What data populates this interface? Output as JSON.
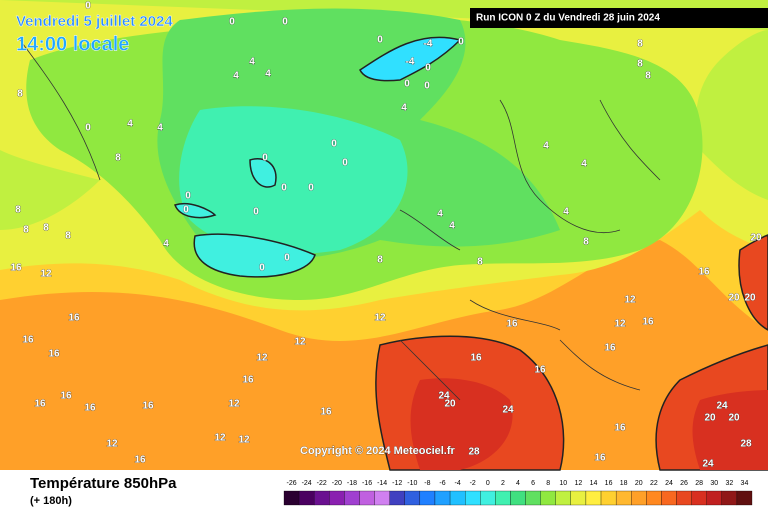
{
  "header": {
    "date": "Vendredi 5 juillet 2024",
    "time": "14:00 locale",
    "run": "Run ICON 0 Z du Vendredi 28 juin 2024"
  },
  "copyright": "Copyright © 2024 Meteociel.fr",
  "footer": {
    "title": "Température 850hPa",
    "lead": "(+ 180h)"
  },
  "scale": {
    "labels": [
      -26,
      -24,
      -22,
      -20,
      -18,
      -16,
      -14,
      -12,
      -10,
      -8,
      -6,
      -4,
      -2,
      0,
      2,
      4,
      6,
      8,
      10,
      12,
      14,
      16,
      18,
      20,
      22,
      24,
      26,
      28,
      30,
      32,
      34
    ],
    "colors": [
      "#2a0030",
      "#4a0060",
      "#6a1090",
      "#8a20b0",
      "#a040d0",
      "#c060e0",
      "#d080f0",
      "#4040c0",
      "#3060e0",
      "#2080ff",
      "#20a0ff",
      "#20c0ff",
      "#30e0ff",
      "#40f0e0",
      "#40f0b0",
      "#40e080",
      "#60e060",
      "#90e840",
      "#c0f040",
      "#e8f040",
      "#ffee40",
      "#ffd030",
      "#ffb830",
      "#ffa028",
      "#ff8820",
      "#f86820",
      "#e84820",
      "#d83020",
      "#c02020",
      "#901818",
      "#601010"
    ]
  },
  "map": {
    "isotherm_labels": [
      0,
      0,
      0,
      0,
      0,
      -4,
      -4,
      0,
      0,
      0,
      4,
      4,
      4,
      4,
      4,
      4,
      0,
      8,
      8,
      0,
      0,
      0,
      0,
      0,
      0,
      0,
      0,
      0,
      0,
      4,
      4,
      4,
      4,
      4,
      4,
      8,
      8,
      8,
      8,
      8,
      8,
      8,
      8,
      8,
      8,
      12,
      12,
      12,
      12,
      12,
      12,
      16,
      16,
      16,
      16,
      16,
      16,
      16,
      16,
      16,
      16,
      16,
      16,
      16,
      16,
      16,
      24,
      24,
      20,
      28,
      24,
      20,
      20,
      28,
      24,
      20,
      20,
      20,
      16,
      16,
      16,
      12,
      12,
      12,
      16,
      12
    ]
  }
}
